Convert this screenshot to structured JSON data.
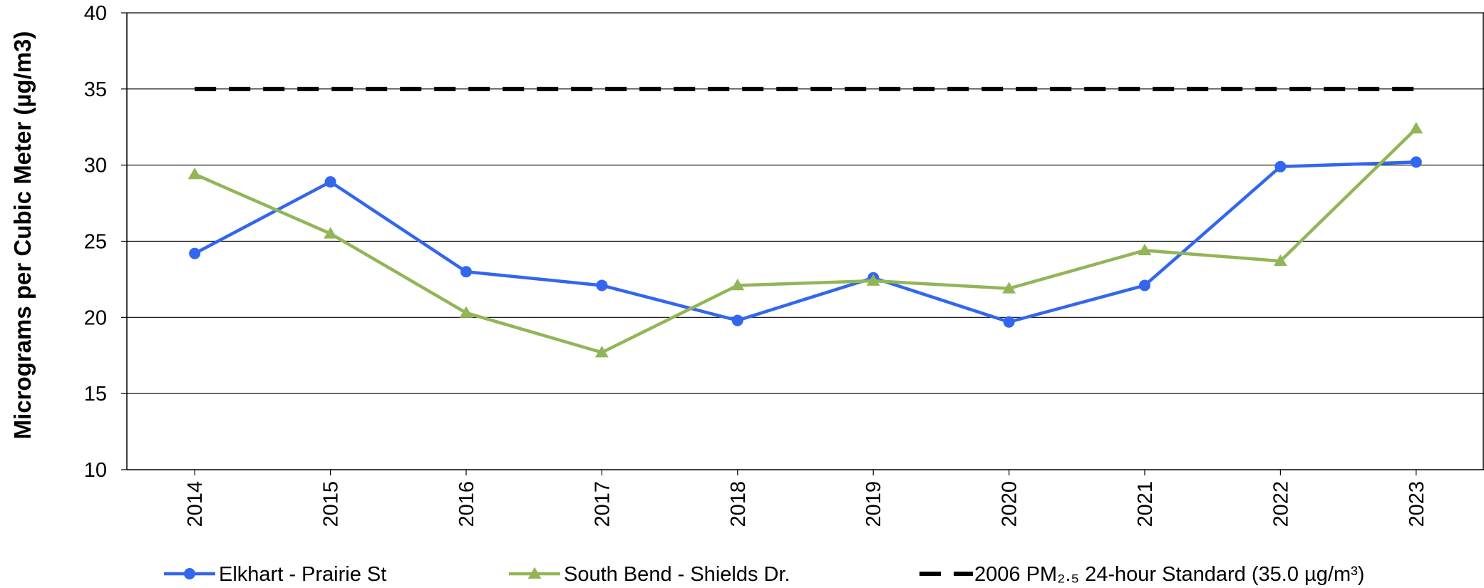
{
  "chart_data": {
    "type": "line",
    "categories": [
      "2014",
      "2015",
      "2016",
      "2017",
      "2018",
      "2019",
      "2020",
      "2021",
      "2022",
      "2023"
    ],
    "ylabel": "Micrograms  per Cubic Meter (µg/m3)",
    "ylim": [
      10,
      40
    ],
    "yticks": [
      "10",
      "15",
      "20",
      "25",
      "30",
      "35",
      "40"
    ],
    "grid": "horizontal",
    "legend_position": "bottom",
    "series": [
      {
        "name": "Elkhart - Prairie St",
        "values": [
          24.2,
          28.9,
          23.0,
          22.1,
          19.8,
          22.6,
          19.7,
          22.1,
          29.9,
          30.2
        ],
        "color": "#3366ee",
        "marker": "circle"
      },
      {
        "name": "South Bend - Shields Dr.",
        "values": [
          29.4,
          25.5,
          20.3,
          17.7,
          22.1,
          22.4,
          21.9,
          24.4,
          23.7,
          32.4
        ],
        "color": "#92b558",
        "marker": "triangle"
      },
      {
        "name": "2006 PM₂.₅ 24-hour Standard (35.0 µg/m³)",
        "values": [
          35,
          35,
          35,
          35,
          35,
          35,
          35,
          35,
          35,
          35
        ],
        "color": "#000000",
        "marker": "none",
        "style": "dashed"
      }
    ]
  }
}
